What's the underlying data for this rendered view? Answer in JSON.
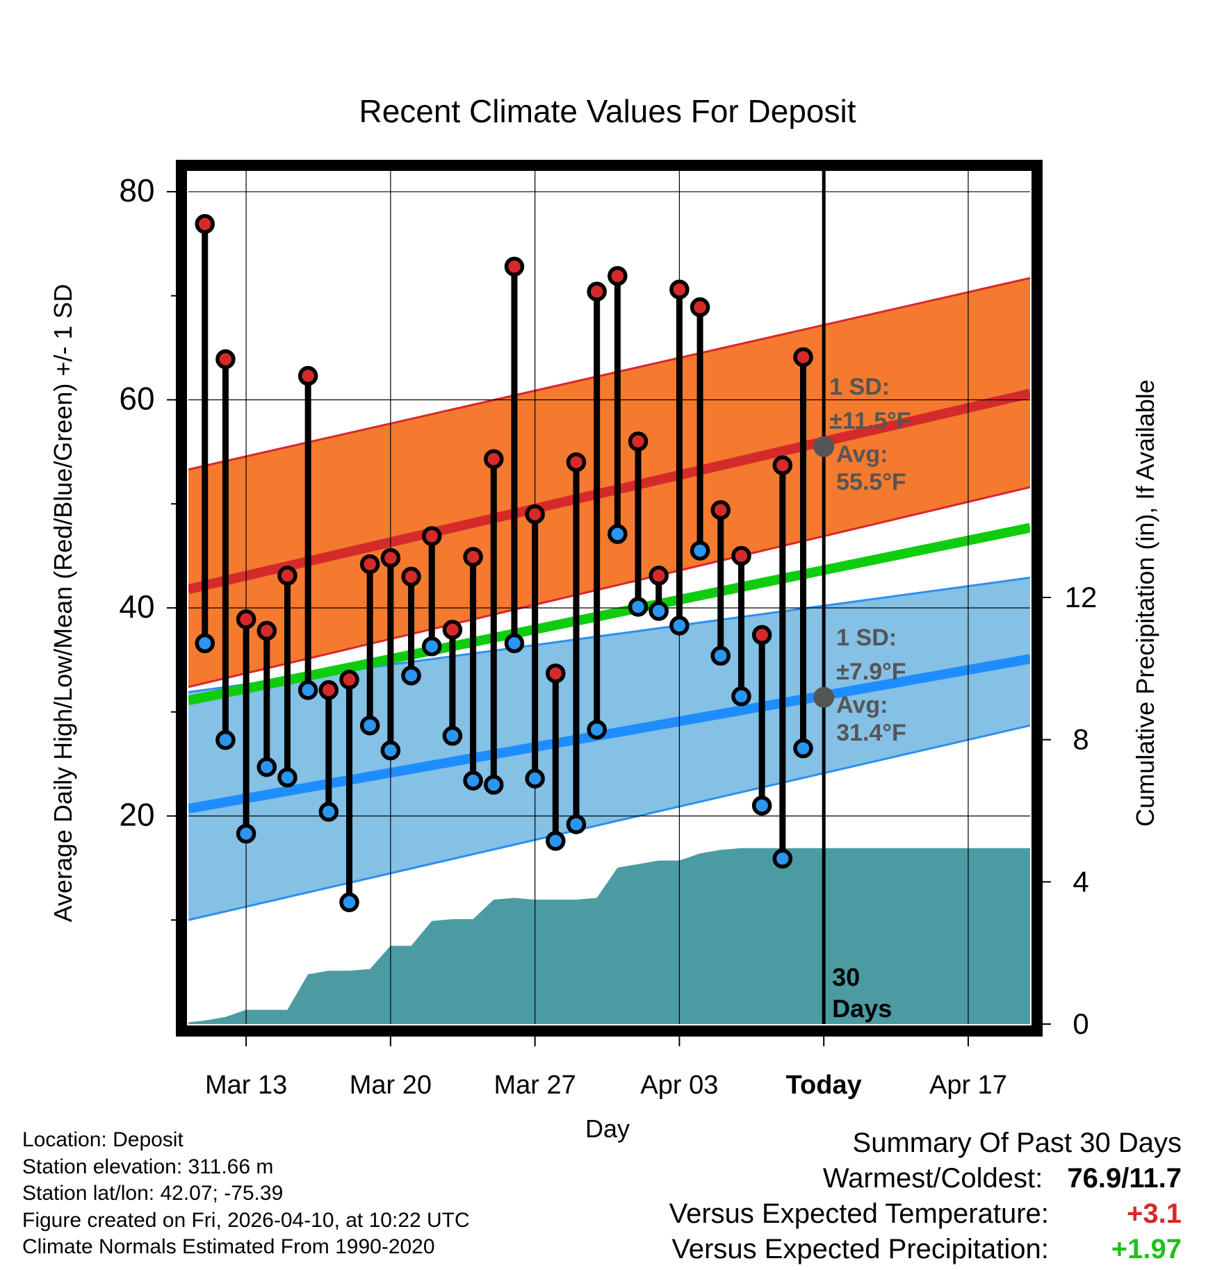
{
  "colors": {
    "high_band": "#f47a30",
    "high_band_edge": "#d9272a",
    "high_mean": "#d52a2a",
    "low_band": "#85c0e5",
    "low_band_edge": "#2d8ff0",
    "low_mean": "#1e8dff",
    "normal_mean": "#0fcc0f",
    "precip_fill": "#4a9ca2",
    "high_dot": "#d52a2a",
    "low_dot": "#2a96ef",
    "annotation": "#555555",
    "positive_temp": "#d52a2a",
    "positive_precip": "#1fc01f"
  },
  "chart_data": {
    "type": "line",
    "title": "Recent Climate Values For Deposit",
    "xlabel": "Day",
    "ylabel": "Average Daily High/Low/Mean (Red/Blue/Green) +/- 1 SD",
    "y2label": "Cumulative Precipitation (in), If Available",
    "xlim": [
      -0.8,
      40
    ],
    "ylim": [
      0,
      82
    ],
    "y2lim": [
      0,
      24
    ],
    "yticks": [
      20,
      40,
      60,
      80
    ],
    "y2ticks": [
      0,
      4,
      8,
      12
    ],
    "x_ticks": [
      {
        "day": 2,
        "label": "Mar 13",
        "bold": false
      },
      {
        "day": 9,
        "label": "Mar 20",
        "bold": false
      },
      {
        "day": 16,
        "label": "Mar 27",
        "bold": false
      },
      {
        "day": 23,
        "label": "Apr 03",
        "bold": false
      },
      {
        "day": 30,
        "label": "Today",
        "bold": true
      },
      {
        "day": 37,
        "label": "Apr 17",
        "bold": false
      }
    ],
    "grid": true,
    "today_day": 30,
    "today_label": [
      "30",
      "Days"
    ],
    "days": [
      0,
      1,
      2,
      3,
      4,
      5,
      6,
      7,
      8,
      9,
      10,
      11,
      12,
      13,
      14,
      15,
      16,
      17,
      18,
      19,
      20,
      21,
      22,
      23,
      24,
      25,
      26,
      27,
      28,
      29
    ],
    "highs": [
      76.9,
      63.9,
      38.9,
      37.8,
      43.1,
      62.3,
      32.1,
      33.1,
      44.2,
      44.8,
      43.0,
      46.9,
      37.9,
      44.9,
      54.3,
      72.8,
      49.0,
      33.7,
      54.0,
      70.4,
      71.9,
      56.0,
      43.1,
      70.6,
      68.9,
      49.4,
      45.0,
      37.4,
      53.7,
      64.1
    ],
    "lows": [
      36.6,
      27.3,
      18.3,
      24.7,
      23.7,
      32.1,
      20.4,
      11.7,
      28.7,
      26.3,
      33.5,
      36.3,
      27.7,
      23.4,
      23.0,
      36.6,
      23.6,
      17.6,
      19.2,
      28.3,
      47.1,
      40.1,
      39.7,
      38.3,
      45.5,
      35.4,
      31.5,
      21.0,
      15.9,
      26.5
    ],
    "series": [
      {
        "name": "Normal High Mean",
        "x": [
          -0.8,
          40
        ],
        "values": [
          41.8,
          60.6
        ]
      },
      {
        "name": "Normal High +1 SD",
        "x": [
          -0.8,
          40
        ],
        "values": [
          53.3,
          71.7
        ]
      },
      {
        "name": "Normal High -1 SD",
        "x": [
          -0.8,
          40
        ],
        "values": [
          32.4,
          51.6
        ]
      },
      {
        "name": "Normal Mean",
        "x": [
          -0.8,
          40
        ],
        "values": [
          31.1,
          47.7
        ]
      },
      {
        "name": "Normal Low Mean",
        "x": [
          -0.8,
          40
        ],
        "values": [
          20.7,
          35.1
        ]
      },
      {
        "name": "Normal Low +1 SD",
        "x": [
          -0.8,
          40
        ],
        "values": [
          31.9,
          42.9
        ]
      },
      {
        "name": "Normal Low -1 SD",
        "x": [
          -0.8,
          40
        ],
        "values": [
          10.0,
          28.7
        ]
      }
    ],
    "precip_cumulative": {
      "x": [
        -0.8,
        0,
        1,
        2,
        3,
        4,
        5,
        6,
        7,
        8,
        9,
        10,
        11,
        12,
        13,
        14,
        15,
        16,
        17,
        18,
        19,
        20,
        21,
        22,
        23,
        24,
        25,
        26,
        27,
        28,
        29,
        30,
        40
      ],
      "values": [
        0.05,
        0.1,
        0.2,
        0.4,
        0.4,
        0.4,
        1.4,
        1.5,
        1.5,
        1.55,
        2.2,
        2.2,
        2.9,
        2.95,
        2.95,
        3.5,
        3.55,
        3.5,
        3.5,
        3.5,
        3.55,
        4.4,
        4.5,
        4.6,
        4.6,
        4.8,
        4.9,
        4.95,
        4.95,
        4.95,
        4.95,
        4.95,
        4.95
      ]
    },
    "annotations": {
      "high": {
        "sd_label": "1 SD:",
        "sd_value": "±11.5°F",
        "avg_label": "Avg:",
        "avg_value": "55.5°F",
        "avg": 55.5
      },
      "low": {
        "sd_label": "1 SD:",
        "sd_value": "±7.9°F",
        "avg_label": "Avg:",
        "avg_value": "31.4°F",
        "avg": 31.4
      }
    }
  },
  "footer": {
    "location": "Location: Deposit",
    "elevation": "Station elevation: 311.66 m",
    "latlon": "Station lat/lon: 42.07; -75.39",
    "created": "Figure created on Fri, 2026-04-10, at 10:22 UTC",
    "normals": "Climate Normals Estimated From 1990-2020"
  },
  "summary": {
    "heading": "Summary Of Past 30 Days",
    "warmest_label": "Warmest/Coldest:",
    "warmest_value": "76.9/11.7",
    "temp_label": "Versus Expected Temperature:",
    "temp_value": "+3.1",
    "precip_label": "Versus Expected Precipitation:",
    "precip_value": "+1.97"
  }
}
